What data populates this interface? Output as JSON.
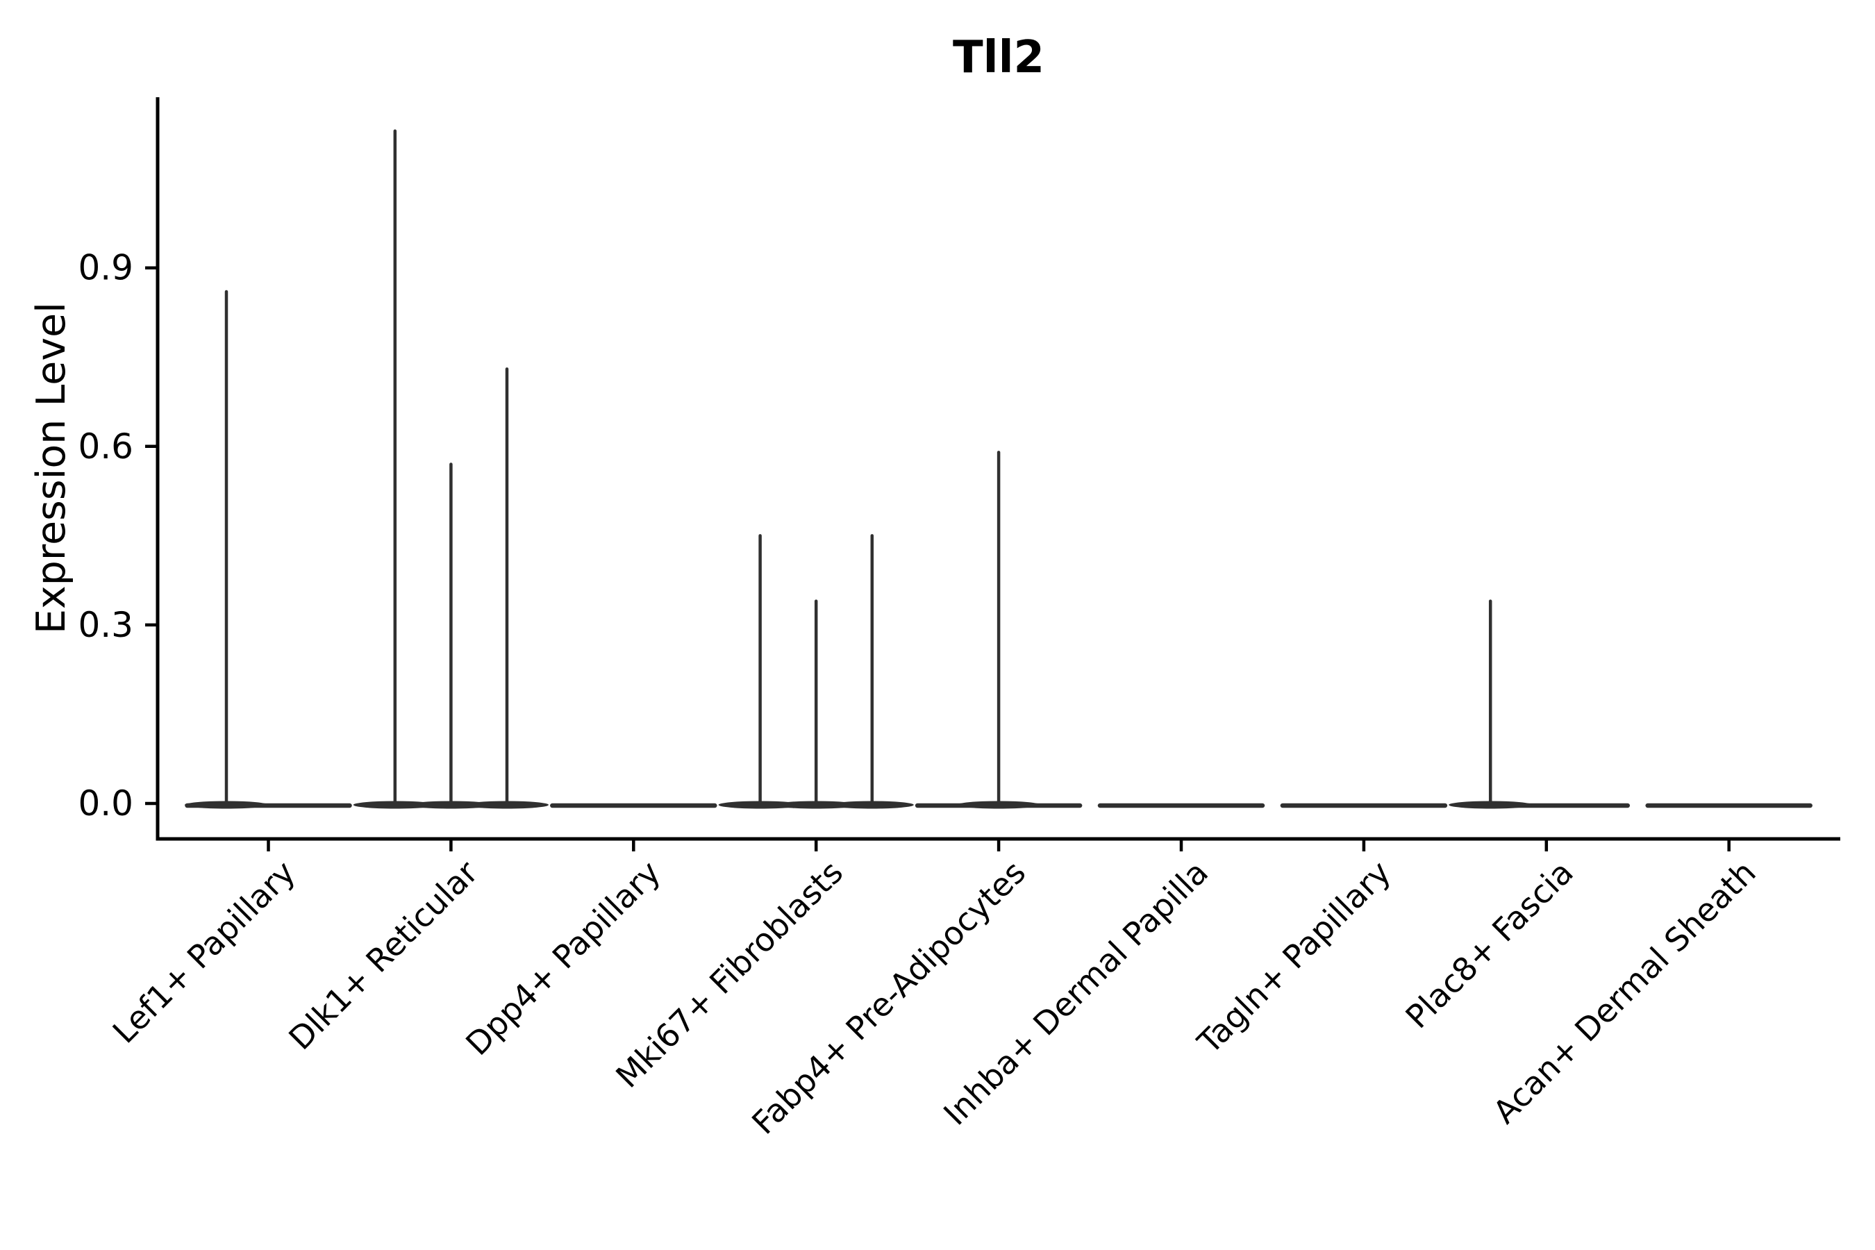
{
  "chart_data": {
    "type": "violin",
    "title": "Tll2",
    "xlabel": "",
    "ylabel": "Expression Level",
    "categories": [
      "Lef1+ Papillary",
      "Dlk1+ Reticular",
      "Dpp4+ Papillary",
      "Mki67+ Fibroblasts",
      "Fabp4+ Pre-Adipocytes",
      "Inhba+ Dermal Papilla",
      "Tagln+ Papillary",
      "Plac8+ Fascia",
      "Acan+ Dermal Sheath"
    ],
    "yticks": [
      0.0,
      0.3,
      0.6,
      0.9
    ],
    "ytick_labels": [
      "0.0",
      "0.3",
      "0.6",
      "0.9"
    ],
    "ylim": [
      0,
      1.19
    ],
    "grid": false,
    "legend": "none",
    "violins": [
      {
        "category": "Lef1+ Papillary",
        "baseline_value": 0.0,
        "spikes": [
          {
            "pos": 0.25,
            "value": 0.86
          }
        ]
      },
      {
        "category": "Dlk1+ Reticular",
        "baseline_value": 0.0,
        "spikes": [
          {
            "pos": 0.167,
            "value": 1.13
          },
          {
            "pos": 0.5,
            "value": 0.57
          },
          {
            "pos": 0.833,
            "value": 0.73
          }
        ]
      },
      {
        "category": "Dpp4+ Papillary",
        "baseline_value": 0.0,
        "spikes": []
      },
      {
        "category": "Mki67+ Fibroblasts",
        "baseline_value": 0.0,
        "spikes": [
          {
            "pos": 0.167,
            "value": 0.45
          },
          {
            "pos": 0.5,
            "value": 0.34
          },
          {
            "pos": 0.833,
            "value": 0.45
          }
        ]
      },
      {
        "category": "Fabp4+ Pre-Adipocytes",
        "baseline_value": 0.0,
        "spikes": [
          {
            "pos": 0.5,
            "value": 0.59
          }
        ]
      },
      {
        "category": "Inhba+ Dermal Papilla",
        "baseline_value": 0.0,
        "spikes": []
      },
      {
        "category": "Tagln+ Papillary",
        "baseline_value": 0.0,
        "spikes": []
      },
      {
        "category": "Plac8+ Fascia",
        "baseline_value": 0.0,
        "spikes": [
          {
            "pos": 0.167,
            "value": 0.34
          }
        ]
      },
      {
        "category": "Acan+ Dermal Sheath",
        "baseline_value": 0.0,
        "spikes": []
      }
    ],
    "colors": {
      "background": "#ffffff",
      "axis": "#000000",
      "text": "#000000",
      "violin": "#303030"
    }
  }
}
